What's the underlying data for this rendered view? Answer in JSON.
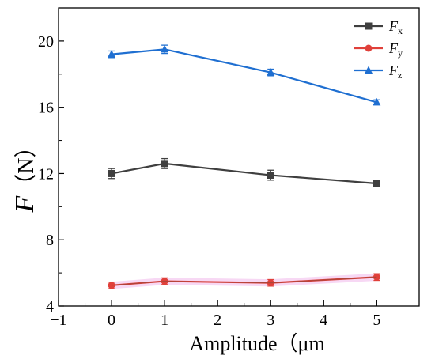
{
  "chart_data": {
    "type": "line",
    "xlabel": "Amplitude（μm",
    "ylabel": "F（N）",
    "ylabel_var": "F",
    "ylabel_unit": "（N）",
    "xlim": [
      -1,
      5.8
    ],
    "ylim": [
      4,
      22
    ],
    "xticks": [
      -1,
      0,
      1,
      2,
      3,
      4,
      5
    ],
    "yticks": [
      4,
      8,
      12,
      16,
      20
    ],
    "grid": false,
    "legend_placement": "top-right",
    "x": [
      0,
      1,
      3,
      5
    ],
    "series": [
      {
        "name": "Fx",
        "legend_var": "F",
        "legend_sub": "x",
        "color": "#3f3f3f",
        "marker": "square",
        "values": [
          12.0,
          12.6,
          11.9,
          11.4
        ],
        "errors": [
          0.3,
          0.3,
          0.3,
          0.2
        ]
      },
      {
        "name": "Fy",
        "legend_var": "F",
        "legend_sub": "y",
        "color": "#e0403a",
        "marker": "circle",
        "values": [
          5.25,
          5.5,
          5.4,
          5.75
        ],
        "errors": [
          0.2,
          0.2,
          0.2,
          0.2
        ]
      },
      {
        "name": "Fz",
        "legend_var": "F",
        "legend_sub": "z",
        "color": "#1f6fd1",
        "marker": "triangle",
        "values": [
          19.2,
          19.5,
          18.1,
          16.3
        ],
        "errors": [
          0.2,
          0.25,
          0.2,
          0.15
        ]
      }
    ]
  }
}
